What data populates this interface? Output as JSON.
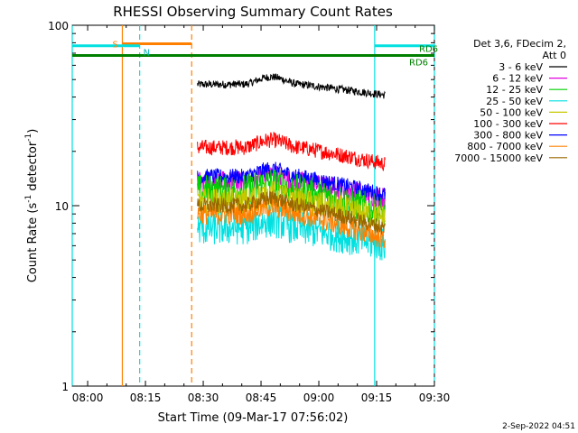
{
  "chart_data": {
    "type": "line",
    "title": "RHESSI Observing Summary Count Rates",
    "xlabel": "Start Time (09-Mar-17 07:56:02)",
    "ylabel_main": "Count Rate (s",
    "ylabel_sup1": "-1",
    "ylabel_mid": " detector",
    "ylabel_sup2": "-1",
    "ylabel_end": ")",
    "yscale": "log",
    "ylim": [
      1,
      100
    ],
    "xlim_minutes": [
      -4,
      36
    ],
    "x_ticks": [
      {
        "label": "08:00",
        "m": 0
      },
      {
        "label": "08:15",
        "m": 15
      },
      {
        "label": "08:30",
        "m": 30
      },
      {
        "label": "08:45",
        "m": 45
      },
      {
        "label": "09:00",
        "m": 60
      },
      {
        "label": "09:15",
        "m": 75
      },
      {
        "label": "09:30",
        "m": 90
      }
    ],
    "y_ticks": [
      {
        "label": "1",
        "v": 1
      },
      {
        "label": "10",
        "v": 10
      },
      {
        "label": "100",
        "v": 100
      }
    ],
    "legend": {
      "header": [
        "Det 3,6, FDecim 2,",
        "Att 0"
      ],
      "entries": [
        {
          "label": "3 - 6 keV",
          "color": "#000000"
        },
        {
          "label": "6 - 12 keV",
          "color": "#e000e0"
        },
        {
          "label": "12 - 25 keV",
          "color": "#00d000"
        },
        {
          "label": "25 - 50 keV",
          "color": "#00e0e0"
        },
        {
          "label": "50 - 100 keV",
          "color": "#c8c800"
        },
        {
          "label": "100 - 300 keV",
          "color": "#ff0000"
        },
        {
          "label": "300 - 800 keV",
          "color": "#0000ff"
        },
        {
          "label": "800 - 7000 keV",
          "color": "#ff8000"
        },
        {
          "label": "7000 - 15000 keV",
          "color": "#996600"
        }
      ]
    },
    "series": [
      {
        "name": "3 - 6 keV",
        "color": "#000000",
        "start": 28.5,
        "end": 77.2,
        "level": 47,
        "end_level": 41,
        "noise": 0.05
      },
      {
        "name": "100 - 300 keV",
        "color": "#ff0000",
        "start": 28.5,
        "end": 77.2,
        "level": 21,
        "end_level": 17,
        "noise": 0.1
      },
      {
        "name": "6 - 12 keV",
        "color": "#e000e0",
        "start": 28.5,
        "end": 77.2,
        "level": 13.5,
        "end_level": 11,
        "noise": 0.14
      },
      {
        "name": "300 - 800 keV",
        "color": "#0000ff",
        "start": 28.5,
        "end": 77.2,
        "level": 14.5,
        "end_level": 11.5,
        "noise": 0.1
      },
      {
        "name": "12 - 25 keV",
        "color": "#00d000",
        "start": 28.5,
        "end": 77.2,
        "level": 12,
        "end_level": 9,
        "noise": 0.22
      },
      {
        "name": "50 - 100 keV",
        "color": "#c8c800",
        "start": 28.5,
        "end": 77.2,
        "level": 10.5,
        "end_level": 8.5,
        "noise": 0.18
      },
      {
        "name": "25 - 50 keV",
        "color": "#00e0e0",
        "start": 28.5,
        "end": 77.2,
        "level": 7.5,
        "end_level": 6.0,
        "noise": 0.22
      },
      {
        "name": "800 - 7000 keV",
        "color": "#ff8000",
        "start": 28.5,
        "end": 77.2,
        "level": 9,
        "end_level": 6.5,
        "noise": 0.14
      },
      {
        "name": "7000 - 15000 keV",
        "color": "#996600",
        "start": 28.5,
        "end": 77.2,
        "level": 10,
        "end_level": 7.5,
        "noise": 0.1
      }
    ],
    "markers": {
      "saa_label": "S",
      "night_label": "N",
      "rd_label_left": "RD6",
      "rd_label_right": "RD6",
      "vertical_lines": [
        {
          "m": -4,
          "color": "#00e0e0",
          "dash": false
        },
        {
          "m": 9.0,
          "color": "#ff8000",
          "dash": false
        },
        {
          "m": 13.5,
          "color": "#00e0e0",
          "dash": true
        },
        {
          "m": 27.0,
          "color": "#ff8000",
          "dash": true
        },
        {
          "m": 74.5,
          "color": "#00e0e0",
          "dash": false
        },
        {
          "m": 90.0,
          "color": "#00e0e0",
          "dash": true
        }
      ],
      "bars": [
        {
          "from": 9.0,
          "to": 27.0,
          "v": 79,
          "color": "#ff8000"
        },
        {
          "from": -4,
          "to": 13.5,
          "v": 77,
          "color": "#00e0e0"
        },
        {
          "from": 74.5,
          "to": 90.0,
          "v": 77,
          "color": "#00e0e0"
        },
        {
          "from": -4,
          "to": 90.0,
          "v": 68,
          "color": "#008000"
        }
      ]
    },
    "footer_date": "2-Sep-2022 04:51"
  }
}
